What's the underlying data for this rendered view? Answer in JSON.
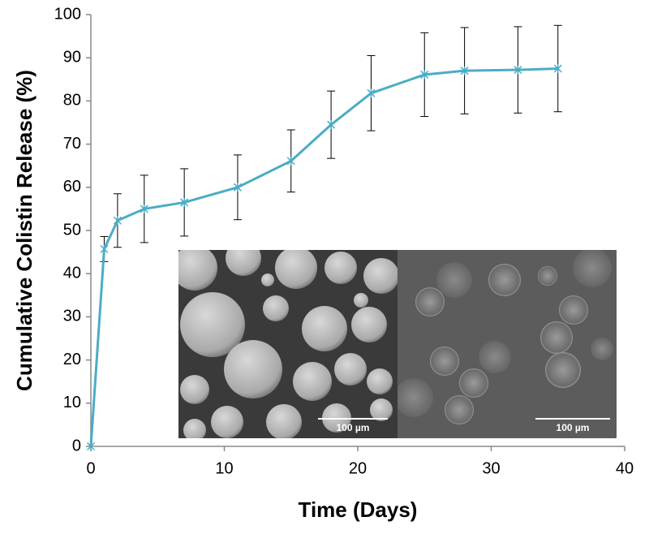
{
  "chart_data": {
    "type": "line",
    "xlabel": "Time (Days)",
    "ylabel": "Cumulative Colistin Release (%)",
    "x": [
      0,
      1,
      2,
      4,
      7,
      11,
      15,
      18,
      21,
      25,
      28,
      32,
      35
    ],
    "values": [
      0,
      45.7,
      52.3,
      55,
      56.5,
      60,
      66.1,
      74.5,
      81.8,
      86.1,
      87,
      87.2,
      87.5
    ],
    "errors": [
      0,
      2.9,
      6.2,
      7.8,
      7.8,
      7.5,
      7.2,
      7.8,
      8.7,
      9.7,
      10,
      10,
      10
    ],
    "color": "#4bacc6",
    "xlim": [
      0,
      40
    ],
    "xticks": [
      0,
      10,
      20,
      30,
      40
    ],
    "ylim": [
      0,
      100
    ],
    "yticks": [
      0,
      10,
      20,
      30,
      40,
      50,
      60,
      70,
      80,
      90,
      100
    ],
    "grid": false,
    "annotations": [
      "100 µm",
      "100 µm"
    ]
  }
}
